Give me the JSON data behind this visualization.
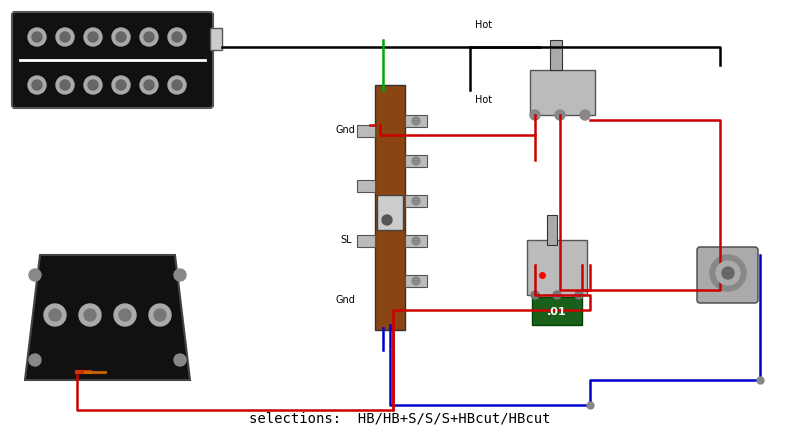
{
  "title": "",
  "caption": "selections:  HB/HB+S/S/S+HBcut/HBcut",
  "caption_fontsize": 10,
  "bg_color": "#ffffff",
  "wire_colors": {
    "black": "#000000",
    "red": "#cc0000",
    "blue": "#0000cc",
    "green": "#00aa00",
    "gray": "#888888"
  },
  "labels": {
    "hot1": "Hot",
    "hot2": "Hot",
    "gnd1": "Gnd",
    "gnd2": "Gnd",
    "sl": "SL",
    "cap": ".01"
  },
  "component_colors": {
    "humbucker_body": "#111111",
    "humbucker_poles": "#aaaaaa",
    "tele_body": "#111111",
    "tele_poles": "#aaaaaa",
    "switch_body": "#888888",
    "switch_brown": "#8B4513",
    "cap_color": "#1a5f1a",
    "metal": "#aaaaaa",
    "chrome": "#cccccc",
    "dark_chrome": "#999999"
  }
}
